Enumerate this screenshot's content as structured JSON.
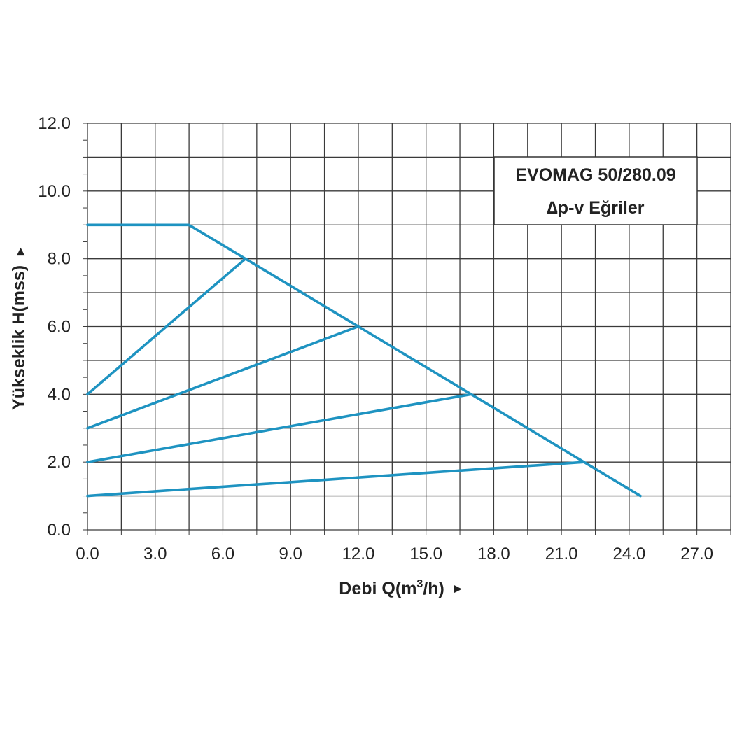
{
  "chart_data": {
    "type": "line",
    "title": "EVOMAG 50/280.09",
    "subtitle": "∆p-v Eğriler",
    "xlabel": "Debi Q(m",
    "xlabel_sup": "3",
    "xlabel_end": "/h)",
    "ylabel": "Yükseklik H(mss)",
    "arrow": "►",
    "xlim": [
      0,
      28.5
    ],
    "ylim": [
      0,
      12
    ],
    "x_ticks": [
      0,
      3,
      6,
      9,
      12,
      15,
      18,
      21,
      24,
      27
    ],
    "x_tick_labels": [
      "0.0",
      "3.0",
      "6.0",
      "9.0",
      "12.0",
      "15.0",
      "18.0",
      "21.0",
      "24.0",
      "27.0"
    ],
    "y_ticks": [
      0,
      2,
      4,
      6,
      8,
      10,
      12
    ],
    "y_tick_labels": [
      "0.0",
      "2.0",
      "4.0",
      "6.0",
      "8.0",
      "10.0",
      "12.0"
    ],
    "grid": true,
    "series_color": "#1e93c1",
    "series": [
      {
        "x": [
          0,
          4.5,
          7.0,
          12.0,
          17.0,
          22.0,
          24.5
        ],
        "y": [
          9,
          9,
          8,
          6,
          4,
          2,
          1
        ]
      },
      {
        "x": [
          0,
          7.0
        ],
        "y": [
          4,
          8
        ]
      },
      {
        "x": [
          0,
          12.0
        ],
        "y": [
          3,
          6
        ]
      },
      {
        "x": [
          0,
          17.0
        ],
        "y": [
          2,
          4
        ]
      },
      {
        "x": [
          0,
          22.0
        ],
        "y": [
          1,
          2
        ]
      }
    ]
  }
}
